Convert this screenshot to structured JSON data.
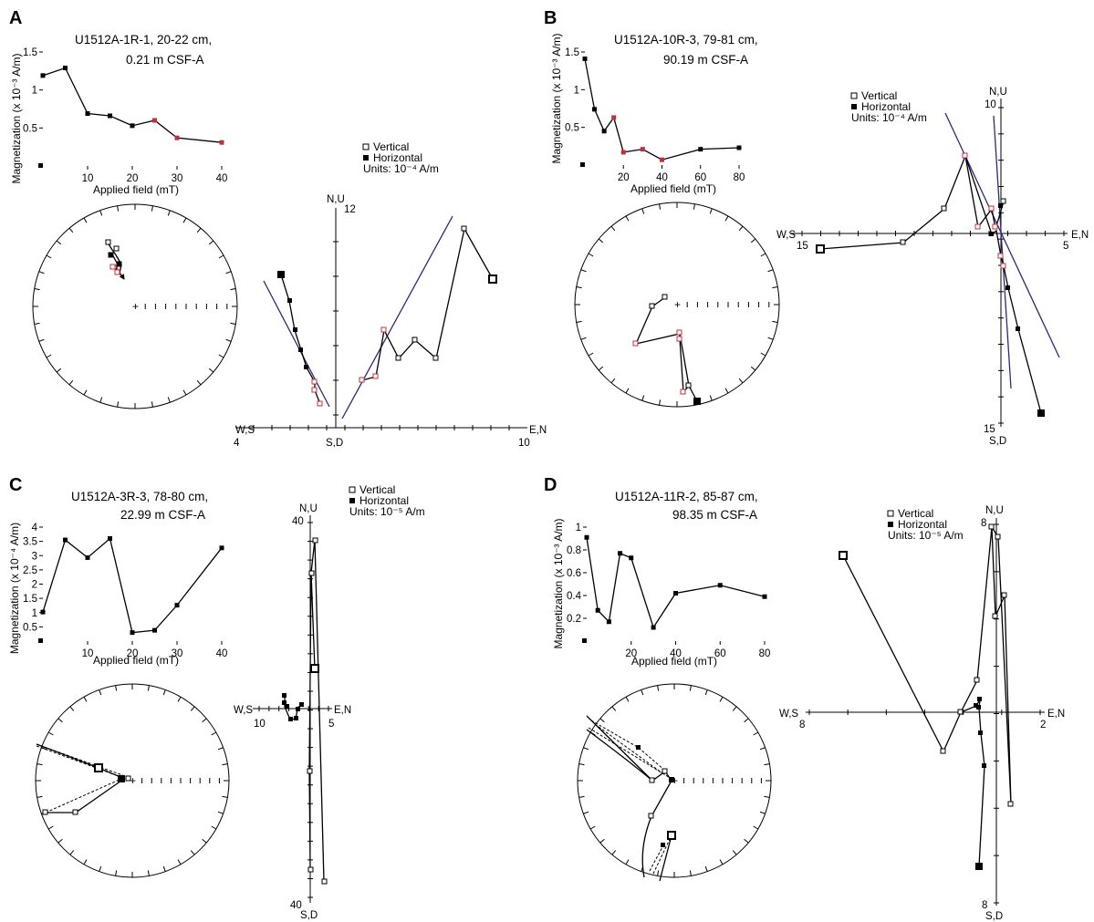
{
  "figure": {
    "panels": [
      {
        "letter": "A",
        "sample": "U1512A-1R-1, 20-22 cm,",
        "depth": "0.21 m CSF-A",
        "legend": {
          "vertical": "Vertical",
          "horizontal": "Horizontal",
          "units": "Units: 10⁻⁴ A/m"
        },
        "zij_labels": {
          "top": "N,U",
          "bottom": "S,D",
          "left": "W,S",
          "right": "E,N",
          "top_val": "12",
          "left_val": "4",
          "right_val": "10",
          "bottom_val": ""
        }
      },
      {
        "letter": "B",
        "sample": "U1512A-10R-3, 79-81 cm,",
        "depth": "90.19 m CSF-A",
        "legend": {
          "vertical": "Vertical",
          "horizontal": "Horizontal",
          "units": "Units: 10⁻⁴ A/m"
        },
        "zij_labels": {
          "top": "N,U",
          "bottom": "S,D",
          "left": "W,S",
          "right": "E,N",
          "top_val": "10",
          "left_val": "15",
          "right_val": "5",
          "bottom_val": "15"
        }
      },
      {
        "letter": "C",
        "sample": "U1512A-3R-3, 78-80 cm,",
        "depth": "22.99 m CSF-A",
        "legend": {
          "vertical": "Vertical",
          "horizontal": "Horizontal",
          "units": "Units: 10⁻⁵ A/m"
        },
        "zij_labels": {
          "top": "N,U",
          "bottom": "S,D",
          "left": "W,S",
          "right": "E,N",
          "top_val": "40",
          "left_val": "10",
          "right_val": "5",
          "bottom_val": "40"
        }
      },
      {
        "letter": "D",
        "sample": "U1512A-11R-2, 85-87 cm,",
        "depth": "98.35 m CSF-A",
        "legend": {
          "vertical": "Vertical",
          "horizontal": "Horizontal",
          "units": "Units: 10⁻⁵ A/m"
        },
        "zij_labels": {
          "top": "N,U",
          "bottom": "S,D",
          "left": "W,S",
          "right": "E,N",
          "top_val": "8",
          "left_val": "8",
          "right_val": "2",
          "bottom_val": "8"
        }
      }
    ]
  },
  "chart_data": [
    {
      "panel": "A",
      "type": "line",
      "xlabel": "Applied field (mT)",
      "ylabel": "Magnetization (x 10⁻³ A/m)",
      "xlim": [
        0,
        40
      ],
      "ylim": [
        0,
        1.5
      ],
      "xticks": [
        "10",
        "20",
        "30",
        "40"
      ],
      "yticks": [
        "0.5",
        "1",
        "1.5"
      ],
      "x": [
        0,
        5,
        10,
        15,
        20,
        25,
        30,
        40
      ],
      "y": [
        1.19,
        1.29,
        0.69,
        0.66,
        0.53,
        0.6,
        0.37,
        0.31
      ],
      "highlight_from": 5
    },
    {
      "panel": "B",
      "type": "line",
      "xlabel": "Applied field (mT)",
      "ylabel": "Magnetization (x 10⁻³ A/m)",
      "xlim": [
        0,
        80
      ],
      "ylim": [
        0,
        1.5
      ],
      "xticks": [
        "20",
        "40",
        "60",
        "80"
      ],
      "yticks": [
        "0.5",
        "1",
        "1.5"
      ],
      "x": [
        0,
        5,
        10,
        15,
        20,
        30,
        40,
        60,
        80
      ],
      "y": [
        1.41,
        0.74,
        0.45,
        0.63,
        0.17,
        0.21,
        0.07,
        0.21,
        0.23
      ],
      "highlight_from": 3,
      "highlight_to": 6
    },
    {
      "panel": "C",
      "type": "line",
      "xlabel": "Applied field (mT)",
      "ylabel": "Magnetization (x 10⁻⁴ A/m)",
      "xlim": [
        0,
        40
      ],
      "ylim": [
        0,
        4
      ],
      "xticks": [
        "10",
        "20",
        "30",
        "40"
      ],
      "yticks": [
        "0.5",
        "1",
        "1.5",
        "2",
        "2.5",
        "3",
        "3.5",
        "4"
      ],
      "x": [
        0,
        5,
        10,
        15,
        20,
        25,
        30,
        40
      ],
      "y": [
        1.02,
        3.55,
        2.93,
        3.6,
        0.3,
        0.38,
        1.26,
        3.27
      ]
    },
    {
      "panel": "D",
      "type": "line",
      "xlabel": "Applied field (mT)",
      "ylabel": "Magnetization (x 10⁻³ A/m)",
      "xlim": [
        0,
        80
      ],
      "ylim": [
        0,
        1
      ],
      "xticks": [
        "20",
        "40",
        "60",
        "80"
      ],
      "yticks": [
        "0.2",
        "0.4",
        "0.6",
        "0.8",
        "1"
      ],
      "x": [
        0,
        5,
        10,
        15,
        20,
        30,
        40,
        60,
        80
      ],
      "y": [
        0.91,
        0.27,
        0.17,
        0.77,
        0.73,
        0.12,
        0.42,
        0.49,
        0.39
      ]
    }
  ]
}
